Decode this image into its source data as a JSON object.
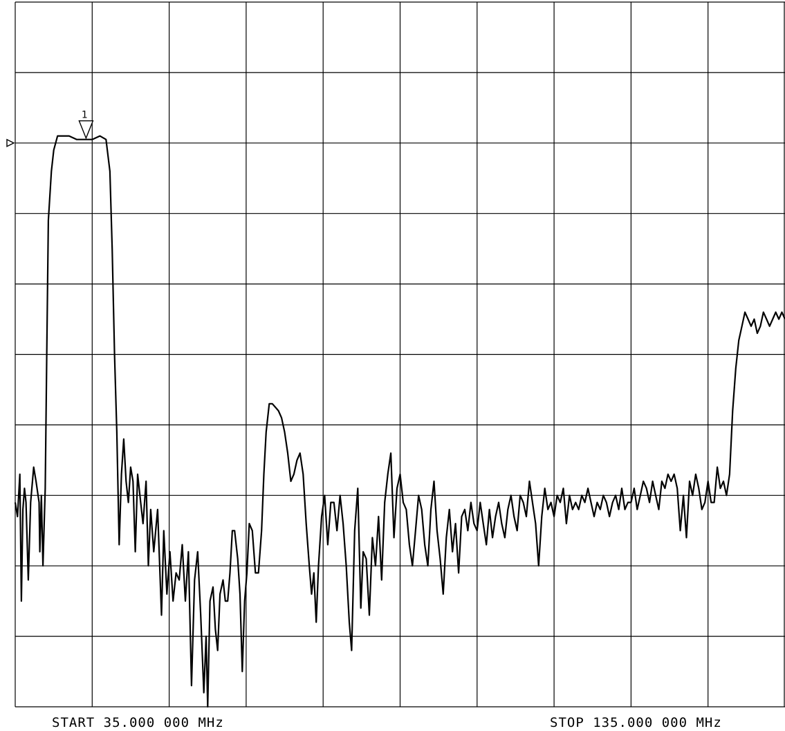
{
  "chart_data": {
    "type": "line",
    "title": "",
    "xlabel": "",
    "ylabel": "",
    "start_label": "START  35.000 000 MHz",
    "stop_label": "STOP  135.000 000 MHz",
    "xlim": [
      35,
      135
    ],
    "ylim": [
      0,
      10
    ],
    "grid": true,
    "grid_divisions": {
      "x": 10,
      "y": 10
    },
    "reference_level": 8,
    "marker": {
      "label": "1",
      "x": 44.2,
      "y": 8.05
    },
    "colors": {
      "trace": "#000000",
      "grid": "#000000",
      "background": "#ffffff"
    },
    "series": [
      {
        "values": [
          [
            35.0,
            2.9
          ],
          [
            35.3,
            2.7
          ],
          [
            35.6,
            3.3
          ],
          [
            35.8,
            1.5
          ],
          [
            36.0,
            2.8
          ],
          [
            36.2,
            3.1
          ],
          [
            36.4,
            2.9
          ],
          [
            36.7,
            1.8
          ],
          [
            37.0,
            2.9
          ],
          [
            37.4,
            3.4
          ],
          [
            37.7,
            3.2
          ],
          [
            38.1,
            2.9
          ],
          [
            38.2,
            2.2
          ],
          [
            38.4,
            3.0
          ],
          [
            38.6,
            2.0
          ],
          [
            38.9,
            3.1
          ],
          [
            39.1,
            5.0
          ],
          [
            39.3,
            6.9
          ],
          [
            39.7,
            7.6
          ],
          [
            40.0,
            7.9
          ],
          [
            40.5,
            8.1
          ],
          [
            41.0,
            8.1
          ],
          [
            42.0,
            8.1
          ],
          [
            43.0,
            8.05
          ],
          [
            44.0,
            8.05
          ],
          [
            45.0,
            8.05
          ],
          [
            46.0,
            8.1
          ],
          [
            46.8,
            8.05
          ],
          [
            47.3,
            7.6
          ],
          [
            47.6,
            6.5
          ],
          [
            47.9,
            5.0
          ],
          [
            48.2,
            3.9
          ],
          [
            48.5,
            2.3
          ],
          [
            48.8,
            3.3
          ],
          [
            49.1,
            3.8
          ],
          [
            49.4,
            3.2
          ],
          [
            49.7,
            2.9
          ],
          [
            50.0,
            3.4
          ],
          [
            50.3,
            3.2
          ],
          [
            50.6,
            2.2
          ],
          [
            50.9,
            3.3
          ],
          [
            51.3,
            2.9
          ],
          [
            51.6,
            2.6
          ],
          [
            52.0,
            3.2
          ],
          [
            52.3,
            2.0
          ],
          [
            52.6,
            2.8
          ],
          [
            53.0,
            2.2
          ],
          [
            53.5,
            2.8
          ],
          [
            54.0,
            1.3
          ],
          [
            54.3,
            2.5
          ],
          [
            54.7,
            1.6
          ],
          [
            55.1,
            2.2
          ],
          [
            55.5,
            1.5
          ],
          [
            55.9,
            1.9
          ],
          [
            56.3,
            1.8
          ],
          [
            56.7,
            2.3
          ],
          [
            57.1,
            1.5
          ],
          [
            57.5,
            2.2
          ],
          [
            57.9,
            0.3
          ],
          [
            58.3,
            1.8
          ],
          [
            58.7,
            2.2
          ],
          [
            59.1,
            1.3
          ],
          [
            59.5,
            0.2
          ],
          [
            59.8,
            1.0
          ],
          [
            60.0,
            0.0
          ],
          [
            60.3,
            1.5
          ],
          [
            60.7,
            1.7
          ],
          [
            61.0,
            1.1
          ],
          [
            61.3,
            0.8
          ],
          [
            61.6,
            1.6
          ],
          [
            62.0,
            1.8
          ],
          [
            62.3,
            1.5
          ],
          [
            62.6,
            1.5
          ],
          [
            62.9,
            1.9
          ],
          [
            63.2,
            2.5
          ],
          [
            63.5,
            2.5
          ],
          [
            63.9,
            2.1
          ],
          [
            64.2,
            1.6
          ],
          [
            64.5,
            0.5
          ],
          [
            64.8,
            1.5
          ],
          [
            65.1,
            1.9
          ],
          [
            65.4,
            2.6
          ],
          [
            65.8,
            2.5
          ],
          [
            66.2,
            1.9
          ],
          [
            66.6,
            1.9
          ],
          [
            67.0,
            2.5
          ],
          [
            67.3,
            3.3
          ],
          [
            67.6,
            3.9
          ],
          [
            68.0,
            4.3
          ],
          [
            68.4,
            4.3
          ],
          [
            68.8,
            4.25
          ],
          [
            69.2,
            4.2
          ],
          [
            69.6,
            4.1
          ],
          [
            70.0,
            3.9
          ],
          [
            70.4,
            3.6
          ],
          [
            70.8,
            3.2
          ],
          [
            71.2,
            3.3
          ],
          [
            71.6,
            3.5
          ],
          [
            72.0,
            3.6
          ],
          [
            72.4,
            3.3
          ],
          [
            72.8,
            2.6
          ],
          [
            73.2,
            2.0
          ],
          [
            73.5,
            1.6
          ],
          [
            73.8,
            1.9
          ],
          [
            74.1,
            1.2
          ],
          [
            74.4,
            2.0
          ],
          [
            74.8,
            2.7
          ],
          [
            75.2,
            3.0
          ],
          [
            75.6,
            2.3
          ],
          [
            76.0,
            2.9
          ],
          [
            76.4,
            2.9
          ],
          [
            76.8,
            2.5
          ],
          [
            77.2,
            3.0
          ],
          [
            77.6,
            2.6
          ],
          [
            78.0,
            2.0
          ],
          [
            78.4,
            1.2
          ],
          [
            78.7,
            0.8
          ],
          [
            79.1,
            2.5
          ],
          [
            79.5,
            3.1
          ],
          [
            79.9,
            1.4
          ],
          [
            80.2,
            2.2
          ],
          [
            80.6,
            2.1
          ],
          [
            81.0,
            1.3
          ],
          [
            81.4,
            2.4
          ],
          [
            81.8,
            2.0
          ],
          [
            82.2,
            2.7
          ],
          [
            82.6,
            1.8
          ],
          [
            83.0,
            2.9
          ],
          [
            83.4,
            3.3
          ],
          [
            83.8,
            3.6
          ],
          [
            84.2,
            2.4
          ],
          [
            84.6,
            3.1
          ],
          [
            85.0,
            3.3
          ],
          [
            85.4,
            2.9
          ],
          [
            85.8,
            2.8
          ],
          [
            86.2,
            2.3
          ],
          [
            86.6,
            2.0
          ],
          [
            87.0,
            2.5
          ],
          [
            87.4,
            3.0
          ],
          [
            87.8,
            2.8
          ],
          [
            88.2,
            2.3
          ],
          [
            88.6,
            2.0
          ],
          [
            89.0,
            2.8
          ],
          [
            89.4,
            3.2
          ],
          [
            89.8,
            2.5
          ],
          [
            90.2,
            2.1
          ],
          [
            90.6,
            1.6
          ],
          [
            91.0,
            2.4
          ],
          [
            91.4,
            2.8
          ],
          [
            91.8,
            2.2
          ],
          [
            92.2,
            2.6
          ],
          [
            92.6,
            1.9
          ],
          [
            93.0,
            2.7
          ],
          [
            93.4,
            2.8
          ],
          [
            93.8,
            2.5
          ],
          [
            94.2,
            2.9
          ],
          [
            94.6,
            2.6
          ],
          [
            95.0,
            2.5
          ],
          [
            95.4,
            2.9
          ],
          [
            95.8,
            2.6
          ],
          [
            96.2,
            2.3
          ],
          [
            96.6,
            2.8
          ],
          [
            97.0,
            2.4
          ],
          [
            97.4,
            2.7
          ],
          [
            97.8,
            2.9
          ],
          [
            98.2,
            2.6
          ],
          [
            98.6,
            2.4
          ],
          [
            99.0,
            2.8
          ],
          [
            99.4,
            3.0
          ],
          [
            99.8,
            2.7
          ],
          [
            100.2,
            2.5
          ],
          [
            100.6,
            3.0
          ],
          [
            101.0,
            2.9
          ],
          [
            101.4,
            2.7
          ],
          [
            101.8,
            3.2
          ],
          [
            102.2,
            2.9
          ],
          [
            102.6,
            2.6
          ],
          [
            103.0,
            2.0
          ],
          [
            103.4,
            2.7
          ],
          [
            103.8,
            3.1
          ],
          [
            104.2,
            2.8
          ],
          [
            104.6,
            2.9
          ],
          [
            105.0,
            2.7
          ],
          [
            105.4,
            3.0
          ],
          [
            105.8,
            2.9
          ],
          [
            106.2,
            3.1
          ],
          [
            106.6,
            2.6
          ],
          [
            107.0,
            3.0
          ],
          [
            107.4,
            2.8
          ],
          [
            107.8,
            2.9
          ],
          [
            108.2,
            2.8
          ],
          [
            108.6,
            3.0
          ],
          [
            109.0,
            2.9
          ],
          [
            109.4,
            3.1
          ],
          [
            109.8,
            2.9
          ],
          [
            110.2,
            2.7
          ],
          [
            110.6,
            2.9
          ],
          [
            111.0,
            2.8
          ],
          [
            111.4,
            3.0
          ],
          [
            111.8,
            2.9
          ],
          [
            112.2,
            2.7
          ],
          [
            112.6,
            2.9
          ],
          [
            113.0,
            3.0
          ],
          [
            113.4,
            2.8
          ],
          [
            113.8,
            3.1
          ],
          [
            114.2,
            2.8
          ],
          [
            114.6,
            2.9
          ],
          [
            115.0,
            2.9
          ],
          [
            115.4,
            3.1
          ],
          [
            115.8,
            2.8
          ],
          [
            116.2,
            3.0
          ],
          [
            116.6,
            3.2
          ],
          [
            117.0,
            3.1
          ],
          [
            117.4,
            2.9
          ],
          [
            117.8,
            3.2
          ],
          [
            118.2,
            3.0
          ],
          [
            118.6,
            2.8
          ],
          [
            119.0,
            3.2
          ],
          [
            119.4,
            3.1
          ],
          [
            119.8,
            3.3
          ],
          [
            120.2,
            3.2
          ],
          [
            120.6,
            3.3
          ],
          [
            121.0,
            3.1
          ],
          [
            121.4,
            2.5
          ],
          [
            121.8,
            3.0
          ],
          [
            122.2,
            2.4
          ],
          [
            122.6,
            3.2
          ],
          [
            123.0,
            3.0
          ],
          [
            123.4,
            3.3
          ],
          [
            123.8,
            3.1
          ],
          [
            124.2,
            2.8
          ],
          [
            124.6,
            2.9
          ],
          [
            125.0,
            3.2
          ],
          [
            125.4,
            2.9
          ],
          [
            125.8,
            2.9
          ],
          [
            126.2,
            3.4
          ],
          [
            126.6,
            3.1
          ],
          [
            127.0,
            3.2
          ],
          [
            127.4,
            3.0
          ],
          [
            127.8,
            3.3
          ],
          [
            128.2,
            4.2
          ],
          [
            128.6,
            4.8
          ],
          [
            129.0,
            5.2
          ],
          [
            129.4,
            5.4
          ],
          [
            129.8,
            5.6
          ],
          [
            130.2,
            5.5
          ],
          [
            130.6,
            5.4
          ],
          [
            131.0,
            5.5
          ],
          [
            131.4,
            5.3
          ],
          [
            131.8,
            5.4
          ],
          [
            132.2,
            5.6
          ],
          [
            132.6,
            5.5
          ],
          [
            133.0,
            5.4
          ],
          [
            133.4,
            5.5
          ],
          [
            133.8,
            5.6
          ],
          [
            134.2,
            5.5
          ],
          [
            134.6,
            5.6
          ],
          [
            135.0,
            5.5
          ]
        ]
      }
    ]
  }
}
